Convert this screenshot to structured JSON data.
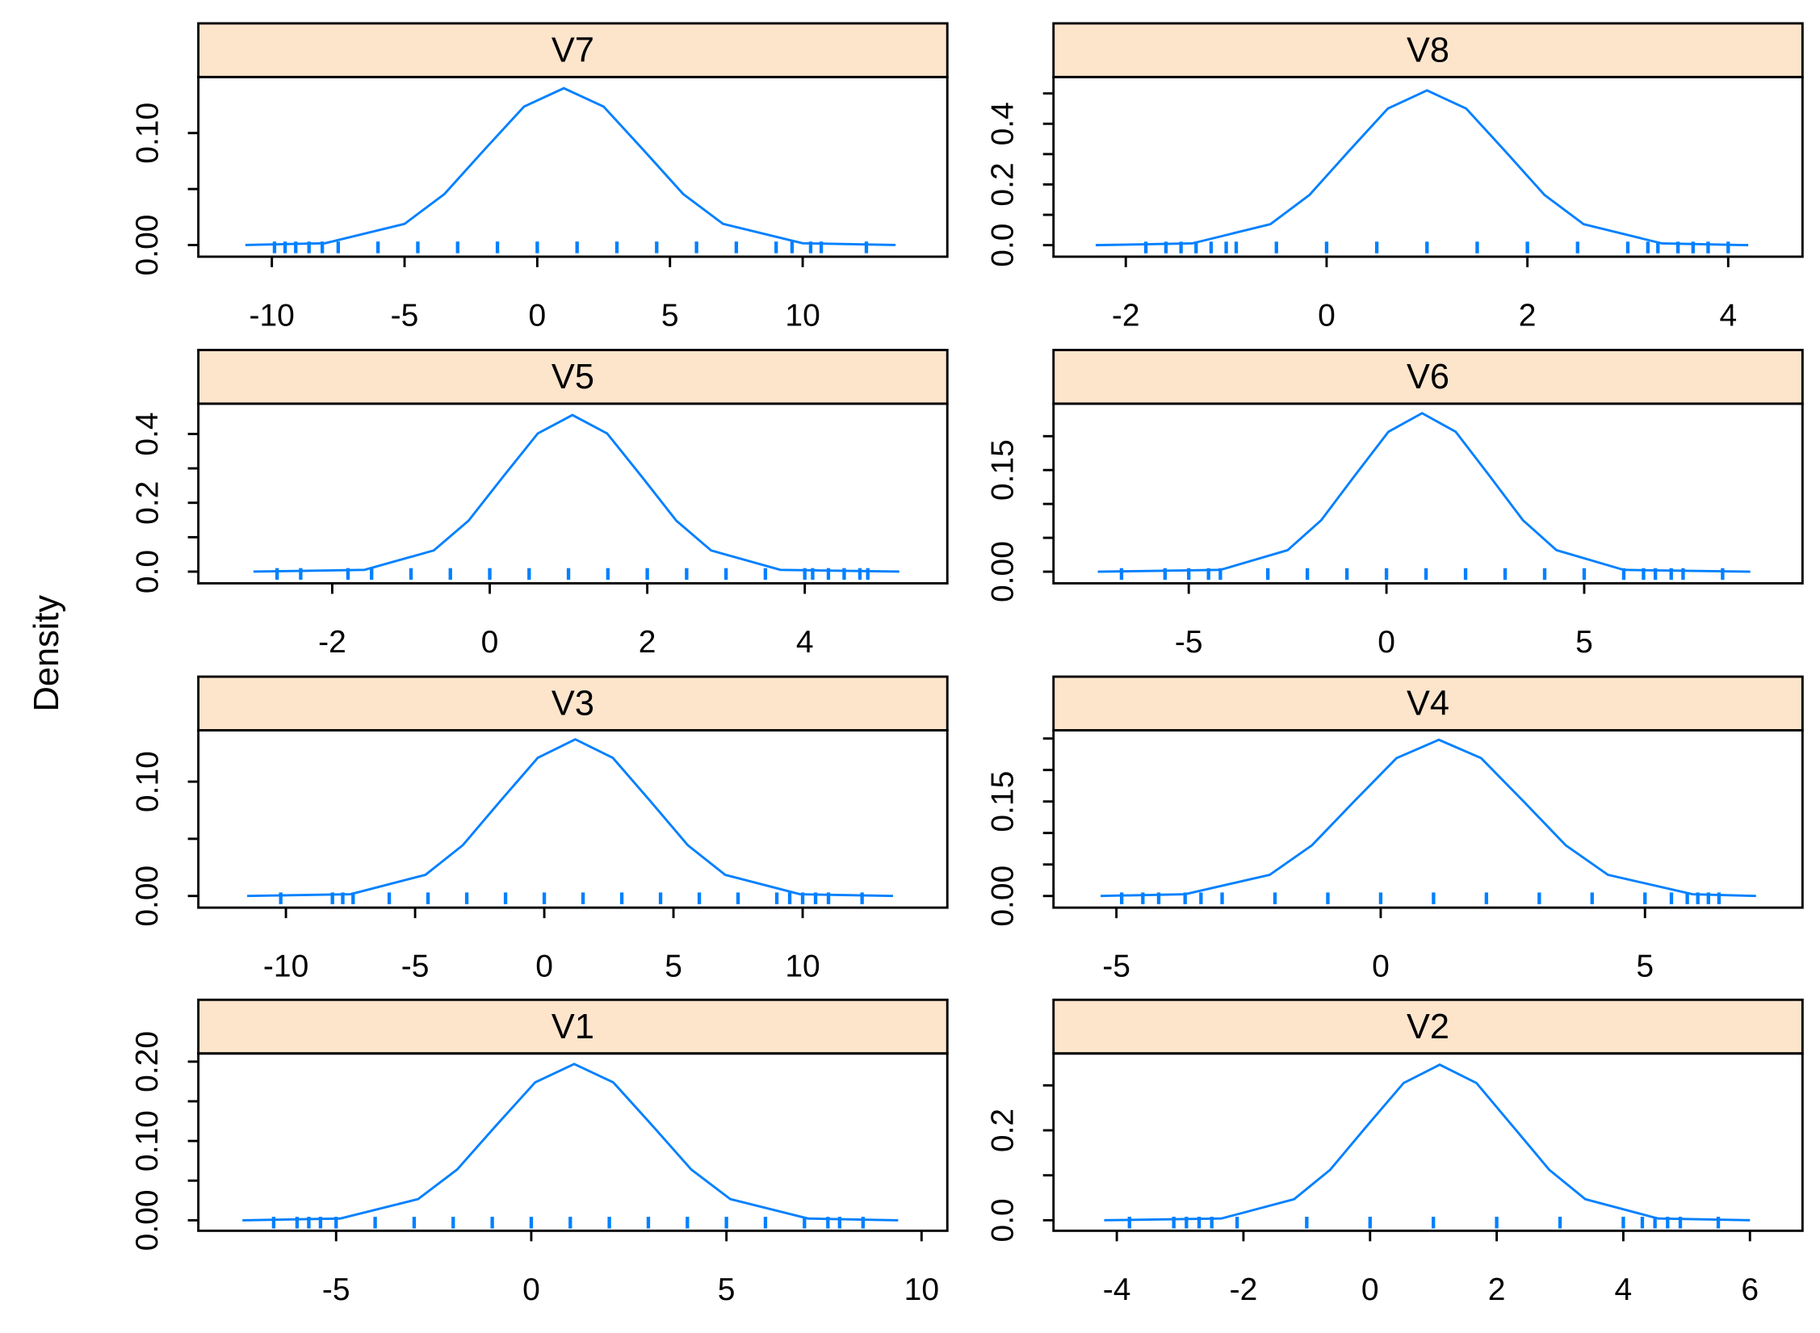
{
  "ylabel": "Density",
  "chart_data": [
    {
      "type": "line",
      "title": "V7",
      "color": "#0080ff",
      "x": [
        -11,
        -8,
        -5,
        -3.5,
        -2,
        -0.5,
        1,
        2.5,
        4,
        5.5,
        7,
        10,
        13.5
      ],
      "values": [
        0,
        0.0016,
        0.0189,
        0.0455,
        0.0849,
        0.1236,
        0.14,
        0.1236,
        0.0849,
        0.0455,
        0.0189,
        0.0016,
        0
      ],
      "rug": [
        -9.9,
        -9.5,
        -9.1,
        -8.6,
        -8.1,
        -7.5,
        -6,
        -4.5,
        -3,
        -1.5,
        0,
        1.5,
        3,
        4.5,
        6,
        7.5,
        9,
        9.6,
        10.3,
        10.7,
        12.4
      ],
      "xlim": [
        -12.77,
        15.45
      ],
      "xticks": [
        -10,
        -5,
        0,
        5,
        10
      ],
      "ylim": [
        -0.0104,
        0.15
      ],
      "yticks": [
        {
          "value": 0,
          "label": "0.00"
        },
        {
          "value": 0.05,
          "label": null
        },
        {
          "value": 0.1,
          "label": "0.10"
        }
      ]
    },
    {
      "type": "line",
      "title": "V8",
      "color": "#0080ff",
      "x": [
        -2.3,
        -1.34,
        -0.56,
        -0.17,
        0.22,
        0.61,
        1,
        1.39,
        1.78,
        2.17,
        2.56,
        3.34,
        4.2
      ],
      "values": [
        0,
        0.0057,
        0.069,
        0.1656,
        0.3093,
        0.4501,
        0.51,
        0.4501,
        0.3093,
        0.1656,
        0.069,
        0.0057,
        0
      ],
      "rug": [
        -1.8,
        -1.6,
        -1.45,
        -1.3,
        -1.15,
        -1,
        -0.9,
        -0.5,
        0,
        0.5,
        1,
        1.5,
        2,
        2.5,
        3,
        3.2,
        3.3,
        3.5,
        3.65,
        3.8,
        4
      ],
      "xlim": [
        -2.72,
        4.74
      ],
      "xticks": [
        -2,
        0,
        2,
        4
      ],
      "ylim": [
        -0.038,
        0.554
      ],
      "yticks": [
        {
          "value": 0,
          "label": "0.0"
        },
        {
          "value": 0.1,
          "label": null
        },
        0.2,
        {
          "value": 0.3,
          "label": null
        },
        0.4,
        {
          "value": 0.5,
          "label": null
        }
      ]
    },
    {
      "type": "line",
      "title": "V5",
      "color": "#0080ff",
      "x": [
        -3,
        -1.59,
        -0.71,
        -0.27,
        0.17,
        0.61,
        1.05,
        1.49,
        1.93,
        2.37,
        2.81,
        3.69,
        5.2
      ],
      "values": [
        0,
        0.0051,
        0.0616,
        0.1477,
        0.276,
        0.4015,
        0.455,
        0.4015,
        0.276,
        0.1477,
        0.0616,
        0.0051,
        0
      ],
      "rug": [
        -2.7,
        -2.4,
        -1.8,
        -1.5,
        -1,
        -0.5,
        0,
        0.5,
        1,
        1.5,
        2,
        2.5,
        3,
        3.5,
        4,
        4.1,
        4.3,
        4.5,
        4.7,
        4.8
      ],
      "xlim": [
        -3.7,
        5.81
      ],
      "xticks": [
        -2,
        0,
        2,
        4
      ],
      "ylim": [
        -0.034,
        0.488
      ],
      "yticks": [
        {
          "value": 0,
          "label": "0.0"
        },
        {
          "value": 0.1,
          "label": null
        },
        0.2,
        {
          "value": 0.3,
          "label": null
        },
        0.4
      ]
    },
    {
      "type": "line",
      "title": "V6",
      "color": "#0080ff",
      "x": [
        -7.3,
        -4.2,
        -2.5,
        -1.65,
        -0.8,
        0.05,
        0.9,
        1.75,
        2.6,
        3.45,
        4.3,
        6,
        9.2
      ],
      "values": [
        0,
        0.0026,
        0.0317,
        0.076,
        0.1419,
        0.2065,
        0.234,
        0.2065,
        0.1419,
        0.076,
        0.0317,
        0.0026,
        0
      ],
      "rug": [
        -6.7,
        -5.6,
        -5,
        -4.5,
        -4.2,
        -3,
        -2,
        -1,
        0,
        1,
        2,
        3,
        4,
        5,
        6,
        6.5,
        6.8,
        7.2,
        7.5,
        8.5
      ],
      "xlim": [
        -8.42,
        10.52
      ],
      "xticks": [
        -5,
        0,
        5
      ],
      "ylim": [
        -0.0172,
        0.248
      ],
      "yticks": [
        {
          "value": 0,
          "label": "0.00"
        },
        {
          "value": 0.05,
          "label": null
        },
        {
          "value": 0.1,
          "label": null
        },
        0.15,
        {
          "value": 0.2,
          "label": null
        }
      ]
    },
    {
      "type": "line",
      "title": "V3",
      "color": "#0080ff",
      "x": [
        -11.5,
        -7.5,
        -4.6,
        -3.15,
        -1.7,
        -0.25,
        1.2,
        2.65,
        4.1,
        5.55,
        7,
        9.9,
        13.5
      ],
      "values": [
        0,
        0.0015,
        0.0185,
        0.0445,
        0.0831,
        0.1209,
        0.137,
        0.1209,
        0.0831,
        0.0445,
        0.0185,
        0.0015,
        0
      ],
      "rug": [
        -10.2,
        -8.2,
        -7.8,
        -7.4,
        -6,
        -4.5,
        -3,
        -1.5,
        0,
        1.5,
        3,
        4.5,
        6,
        7.5,
        9,
        9.5,
        10,
        10.5,
        11,
        12.3
      ],
      "xlim": [
        -13.39,
        15.6
      ],
      "xticks": [
        -10,
        -5,
        0,
        5,
        10
      ],
      "ylim": [
        -0.0102,
        0.1449
      ],
      "yticks": [
        {
          "value": 0,
          "label": "0.00"
        },
        {
          "value": 0.05,
          "label": null
        },
        {
          "value": 0.1,
          "label": "0.10"
        }
      ]
    },
    {
      "type": "line",
      "title": "V4",
      "color": "#0080ff",
      "x": [
        -5.3,
        -3.7,
        -2.1,
        -1.3,
        -0.5,
        0.3,
        1.1,
        1.9,
        2.7,
        3.5,
        4.3,
        5.9,
        7.1
      ],
      "values": [
        0,
        0.0028,
        0.0336,
        0.0805,
        0.1504,
        0.2189,
        0.248,
        0.2189,
        0.1504,
        0.0805,
        0.0336,
        0.0028,
        0
      ],
      "rug": [
        -4.9,
        -4.5,
        -4.2,
        -3.7,
        -3.4,
        -3,
        -2,
        -1,
        0,
        1,
        2,
        3,
        4,
        5,
        5.5,
        5.8,
        6,
        6.2,
        6.4
      ],
      "xlim": [
        -6.19,
        7.98
      ],
      "xticks": [
        -5,
        0,
        5
      ],
      "ylim": [
        -0.0185,
        0.263
      ],
      "yticks": [
        {
          "value": 0,
          "label": "0.00"
        },
        {
          "value": 0.05,
          "label": null
        },
        {
          "value": 0.1,
          "label": null
        },
        0.15,
        {
          "value": 0.2,
          "label": null
        },
        {
          "value": 0.25,
          "label": null
        }
      ]
    },
    {
      "type": "line",
      "title": "V1",
      "color": "#0080ff",
      "x": [
        -7.4,
        -4.9,
        -2.9,
        -1.9,
        -0.9,
        0.1,
        1.1,
        2.1,
        3.1,
        4.1,
        5.1,
        7.1,
        9.4
      ],
      "values": [
        0,
        0.0022,
        0.0267,
        0.064,
        0.1195,
        0.1739,
        0.197,
        0.1739,
        0.1195,
        0.064,
        0.0267,
        0.0022,
        0
      ],
      "rug": [
        -6.6,
        -6,
        -5.7,
        -5.4,
        -5,
        -4,
        -3,
        -2,
        -1,
        0,
        1,
        2,
        3,
        4,
        5,
        6,
        7,
        7.6,
        7.9,
        8.5
      ],
      "xlim": [
        -8.53,
        10.66
      ],
      "xticks": [
        -5,
        0,
        5,
        10
      ],
      "ylim": [
        -0.0132,
        0.2103
      ],
      "yticks": [
        {
          "value": 0,
          "label": "0.00"
        },
        {
          "value": 0.05,
          "label": null
        },
        {
          "value": 0.1,
          "label": "0.10"
        },
        {
          "value": 0.15,
          "label": null
        },
        {
          "value": 0.2,
          "label": "0.20"
        }
      ]
    },
    {
      "type": "line",
      "title": "V2",
      "color": "#0080ff",
      "x": [
        -4.2,
        -2.35,
        -1.2,
        -0.63,
        -0.05,
        0.53,
        1.1,
        1.68,
        2.25,
        2.83,
        3.4,
        4.55,
        6
      ],
      "values": [
        0,
        0.0038,
        0.0468,
        0.1123,
        0.2098,
        0.3053,
        0.346,
        0.3053,
        0.2098,
        0.1123,
        0.0468,
        0.0038,
        0
      ],
      "rug": [
        -3.8,
        -3.1,
        -2.9,
        -2.7,
        -2.5,
        -2.1,
        -1,
        0,
        1,
        2,
        3,
        4,
        4.3,
        4.5,
        4.7,
        4.9,
        5.5
      ],
      "xlim": [
        -5,
        6.83
      ],
      "xticks": [
        -4,
        -2,
        0,
        2,
        4,
        6
      ],
      "ylim": [
        -0.0234,
        0.371
      ],
      "yticks": [
        {
          "value": 0,
          "label": "0.0"
        },
        {
          "value": 0.1,
          "label": null
        },
        0.2,
        {
          "value": 0.3,
          "label": null
        }
      ]
    }
  ]
}
